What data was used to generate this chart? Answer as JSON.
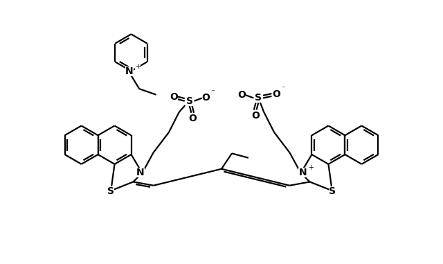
{
  "bg": "#ffffff",
  "lc": "#000000",
  "lw": 1.6,
  "figsize": [
    6.4,
    3.81
  ],
  "dpi": 100,
  "xlim": [
    -0.5,
    10.5
  ],
  "ylim": [
    -0.3,
    6.8
  ]
}
